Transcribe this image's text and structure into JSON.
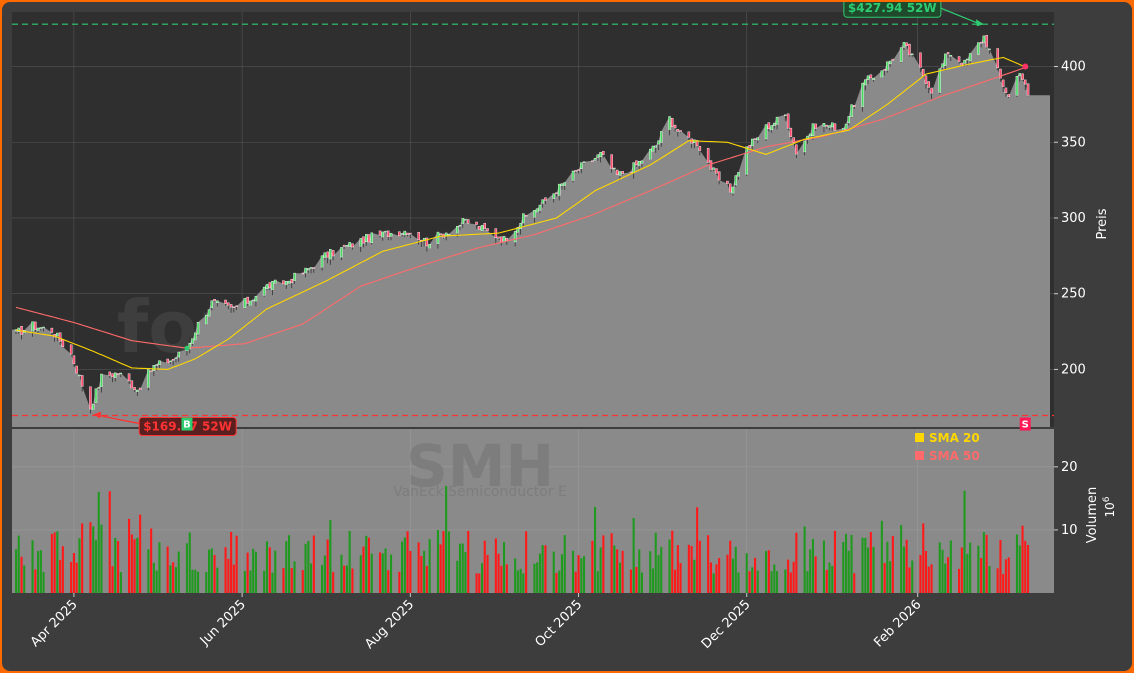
{
  "chart_data": {
    "type": "candlestick",
    "watermark": "forexsignale.trade",
    "ticker": "SMH",
    "company": "VanEck Semiconductor E",
    "y_label_price": "Preis",
    "y_label_volume": "Volumen",
    "volume_exponent": "10",
    "volume_exponent_power": "6",
    "price_ylim": [
      162,
      436
    ],
    "price_yticks": [
      "200",
      "250",
      "300",
      "350",
      "400"
    ],
    "volume_ylim": [
      0,
      26
    ],
    "volume_yticks": [
      "10",
      "20"
    ],
    "x_ticks": [
      "Apr 2025",
      "Jun 2025",
      "Aug 2025",
      "Oct 2025",
      "Dec 2025",
      "Feb 2026"
    ],
    "x_range": [
      "2025-03-11",
      "2026-03-13"
    ],
    "high_52w": {
      "label": "$427.94 52W",
      "value": 427.94,
      "date": "2026-02-25"
    },
    "low_52w": {
      "label": "$169.57 52W",
      "value": 169.57,
      "date": "2025-04-08"
    },
    "buy_marker": {
      "label": "B",
      "date": "2025-05-12",
      "price": 214
    },
    "sell_marker": {
      "label": "S",
      "date": "2026-03-12",
      "price": 400
    },
    "last_close": 381,
    "legend": [
      {
        "name": "SMA 20",
        "color": "#ffd700"
      },
      {
        "name": "SMA 50",
        "color": "#ff6b6b"
      }
    ],
    "price_anchors": [
      [
        "2025-03-11",
        224
      ],
      [
        "2025-03-17",
        229
      ],
      [
        "2025-03-24",
        226
      ],
      [
        "2025-03-31",
        210
      ],
      [
        "2025-04-07",
        175
      ],
      [
        "2025-04-11",
        195
      ],
      [
        "2025-04-17",
        198
      ],
      [
        "2025-04-24",
        187
      ],
      [
        "2025-04-30",
        202
      ],
      [
        "2025-05-07",
        207
      ],
      [
        "2025-05-12",
        214
      ],
      [
        "2025-05-16",
        230
      ],
      [
        "2025-05-21",
        244
      ],
      [
        "2025-05-28",
        240
      ],
      [
        "2025-06-03",
        245
      ],
      [
        "2025-06-10",
        255
      ],
      [
        "2025-06-17",
        258
      ],
      [
        "2025-06-24",
        265
      ],
      [
        "2025-07-01",
        275
      ],
      [
        "2025-07-10",
        282
      ],
      [
        "2025-07-17",
        287
      ],
      [
        "2025-07-24",
        290
      ],
      [
        "2025-07-31",
        292
      ],
      [
        "2025-08-07",
        284
      ],
      [
        "2025-08-14",
        291
      ],
      [
        "2025-08-21",
        298
      ],
      [
        "2025-08-28",
        292
      ],
      [
        "2025-09-04",
        286
      ],
      [
        "2025-09-11",
        300
      ],
      [
        "2025-09-18",
        310
      ],
      [
        "2025-09-25",
        322
      ],
      [
        "2025-10-02",
        334
      ],
      [
        "2025-10-09",
        342
      ],
      [
        "2025-10-15",
        328
      ],
      [
        "2025-10-22",
        335
      ],
      [
        "2025-10-29",
        348
      ],
      [
        "2025-11-03",
        366
      ],
      [
        "2025-11-07",
        355
      ],
      [
        "2025-11-13",
        350
      ],
      [
        "2025-11-20",
        327
      ],
      [
        "2025-11-25",
        318
      ],
      [
        "2025-12-01",
        346
      ],
      [
        "2025-12-08",
        360
      ],
      [
        "2025-12-15",
        368
      ],
      [
        "2025-12-19",
        344
      ],
      [
        "2025-12-26",
        362
      ],
      [
        "2026-01-05",
        360
      ],
      [
        "2026-01-12",
        388
      ],
      [
        "2026-01-20",
        400
      ],
      [
        "2026-01-27",
        414
      ],
      [
        "2026-02-02",
        398
      ],
      [
        "2026-02-06",
        385
      ],
      [
        "2026-02-12",
        410
      ],
      [
        "2026-02-18",
        402
      ],
      [
        "2026-02-25",
        420
      ],
      [
        "2026-03-03",
        392
      ],
      [
        "2026-03-06",
        380
      ],
      [
        "2026-03-10",
        398
      ],
      [
        "2026-03-13",
        381
      ]
    ],
    "sma20_anchors": [
      [
        "2025-03-11",
        226
      ],
      [
        "2025-03-25",
        222
      ],
      [
        "2025-04-08",
        212
      ],
      [
        "2025-04-22",
        201
      ],
      [
        "2025-05-05",
        200
      ],
      [
        "2025-05-15",
        207
      ],
      [
        "2025-05-27",
        220
      ],
      [
        "2025-06-10",
        240
      ],
      [
        "2025-07-01",
        258
      ],
      [
        "2025-07-22",
        278
      ],
      [
        "2025-08-12",
        288
      ],
      [
        "2025-09-02",
        290
      ],
      [
        "2025-09-23",
        300
      ],
      [
        "2025-10-07",
        318
      ],
      [
        "2025-10-27",
        335
      ],
      [
        "2025-11-10",
        351
      ],
      [
        "2025-11-24",
        350
      ],
      [
        "2025-12-08",
        342
      ],
      [
        "2025-12-22",
        352
      ],
      [
        "2026-01-07",
        358
      ],
      [
        "2026-01-21",
        375
      ],
      [
        "2026-02-04",
        395
      ],
      [
        "2026-02-18",
        401
      ],
      [
        "2026-03-04",
        406
      ],
      [
        "2026-03-13",
        399
      ]
    ],
    "sma50_anchors": [
      [
        "2025-03-11",
        241
      ],
      [
        "2025-04-01",
        231
      ],
      [
        "2025-04-22",
        219
      ],
      [
        "2025-05-12",
        214
      ],
      [
        "2025-06-02",
        217
      ],
      [
        "2025-06-23",
        230
      ],
      [
        "2025-07-14",
        255
      ],
      [
        "2025-08-04",
        268
      ],
      [
        "2025-08-25",
        280
      ],
      [
        "2025-09-15",
        289
      ],
      [
        "2025-10-06",
        302
      ],
      [
        "2025-10-27",
        318
      ],
      [
        "2025-11-17",
        335
      ],
      [
        "2025-12-08",
        347
      ],
      [
        "2025-12-29",
        354
      ],
      [
        "2026-01-19",
        365
      ],
      [
        "2026-02-09",
        380
      ],
      [
        "2026-03-02",
        393
      ],
      [
        "2026-03-13",
        400
      ]
    ]
  }
}
